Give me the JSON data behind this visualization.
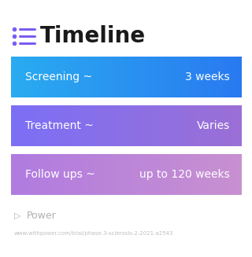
{
  "title": "Timeline",
  "title_icon_color": "#7B5CF0",
  "title_fontsize": 20,
  "title_fontweight": "bold",
  "background_color": "#ffffff",
  "rows": [
    {
      "label": "Screening ~",
      "value": "3 weeks",
      "color_left": "#29ABF0",
      "color_right": "#2979F0"
    },
    {
      "label": "Treatment ~",
      "value": "Varies",
      "color_left": "#7B6FF5",
      "color_right": "#9B6FD5"
    },
    {
      "label": "Follow ups ~",
      "value": "up to 120 weeks",
      "color_left": "#B07BE0",
      "color_right": "#C890D0"
    }
  ],
  "label_fontsize": 10,
  "value_fontsize": 10,
  "watermark_text": "Power",
  "watermark_color": "#b0b0b0",
  "url_text": "www.withpower.com/trial/phase-3-sclerosis-2-2021-a2543",
  "url_color": "#c0c0c0",
  "url_fontsize": 5.0
}
